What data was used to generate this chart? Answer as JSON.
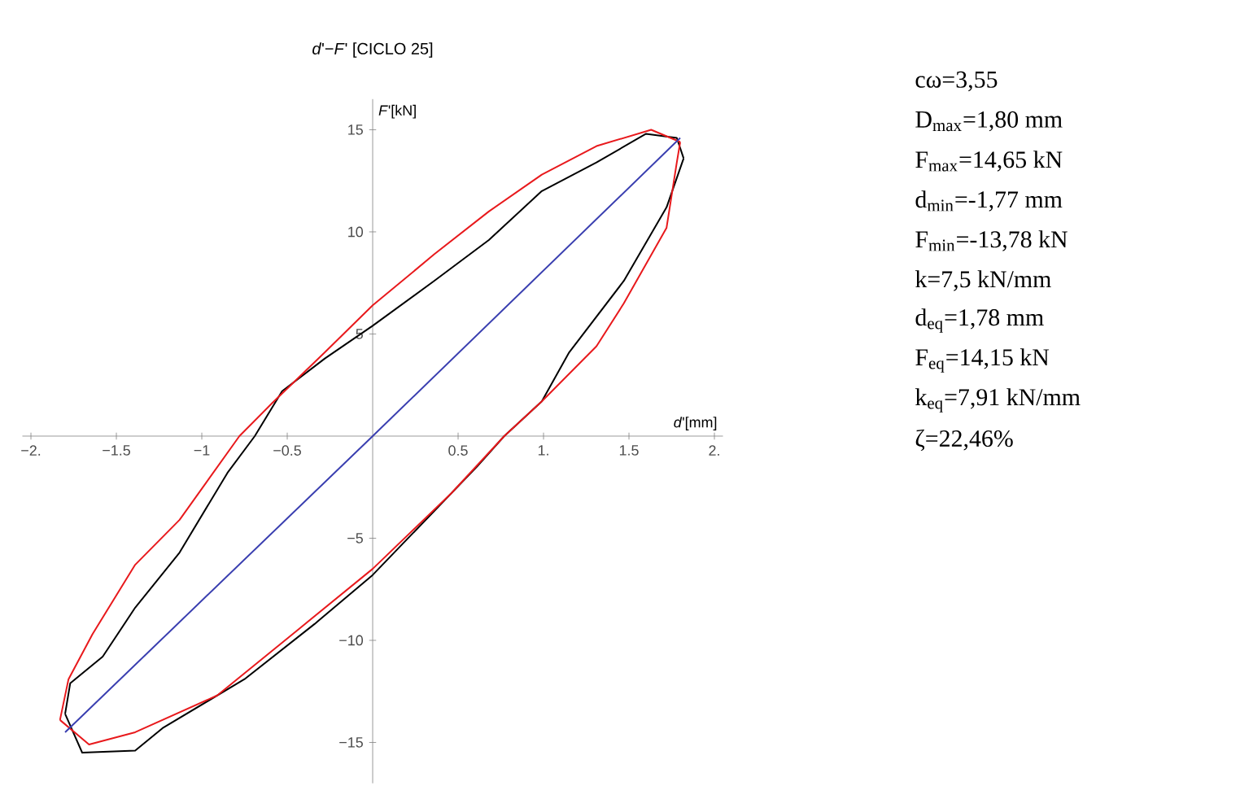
{
  "chart_data": {
    "type": "line",
    "title": "*d*'−*F*'  [CICLO 25]",
    "xlabel": "*d*'[mm]",
    "ylabel": "*F*'[kN]",
    "xlim": [
      -2.05,
      2.05
    ],
    "ylim": [
      -17,
      16.5
    ],
    "xticks": [
      {
        "value": -2,
        "label": "−2."
      },
      {
        "value": -1.5,
        "label": "−1.5"
      },
      {
        "value": -1,
        "label": "−1"
      },
      {
        "value": -0.5,
        "label": "−0.5"
      },
      {
        "value": 0.5,
        "label": "0.5"
      },
      {
        "value": 1,
        "label": "1."
      },
      {
        "value": 1.5,
        "label": "1.5"
      },
      {
        "value": 2,
        "label": "2."
      }
    ],
    "yticks": [
      {
        "value": -15,
        "label": "−15"
      },
      {
        "value": -10,
        "label": "−10"
      },
      {
        "value": -5,
        "label": "−5"
      },
      5,
      10,
      15
    ],
    "series": [
      {
        "color": "#000000",
        "x": [
          1.82,
          1.78,
          1.6,
          1.31,
          0.99,
          0.68,
          0.36,
          0,
          -0.28,
          -0.53,
          -0.69,
          -0.85,
          -1.13,
          -1.39,
          -1.58,
          -1.77,
          -1.8
        ],
        "values": [
          13.6,
          14.6,
          14.8,
          13.4,
          12.0,
          9.6,
          7.6,
          5.4,
          3.8,
          2.2,
          0,
          -1.8,
          -5.7,
          -8.4,
          -10.8,
          -12.1,
          -13.6
        ]
      },
      {
        "color": "#000000",
        "x": [
          -1.8,
          -1.7,
          -1.39,
          -1.23,
          -0.75,
          -0.34,
          0,
          0.61,
          0.77,
          0.99,
          1.15,
          1.47,
          1.72,
          1.82
        ],
        "values": [
          -13.6,
          -15.5,
          -15.4,
          -14.3,
          -11.9,
          -9.2,
          -6.8,
          -1.5,
          0,
          1.7,
          4.1,
          7.6,
          11.2,
          13.6
        ]
      },
      {
        "color": "#e8191c",
        "x": [
          1.8,
          1.63,
          1.31,
          0.99,
          0.68,
          0.36,
          0,
          -0.28,
          -0.59,
          -0.78,
          -1.13,
          -1.39,
          -1.64,
          -1.78,
          -1.83
        ],
        "values": [
          14.4,
          15.0,
          14.2,
          12.8,
          11.0,
          8.9,
          6.4,
          4.1,
          1.6,
          0,
          -4.1,
          -6.3,
          -9.7,
          -11.9,
          -13.9
        ]
      },
      {
        "color": "#e8191c",
        "x": [
          -1.83,
          -1.66,
          -1.39,
          -0.91,
          -0.44,
          0,
          0.46,
          0.77,
          0.99,
          1.31,
          1.47,
          1.72,
          1.78,
          1.8
        ],
        "values": [
          -13.9,
          -15.1,
          -14.5,
          -12.7,
          -9.5,
          -6.5,
          -2.8,
          0,
          1.7,
          4.4,
          6.5,
          10.2,
          13.4,
          14.4
        ]
      },
      {
        "color": "#3a3fb0",
        "x": [
          -1.8,
          0,
          1.8
        ],
        "values": [
          -14.5,
          0,
          14.6
        ]
      }
    ],
    "annotations": [
      "cω=3,55",
      "D$_{max}$=1,80 mm",
      "F$_{max}$=14,65 kN",
      "d$_{min}$=-1,77 mm",
      "F$_{min}$=-13,78 kN",
      "k=7,5 kN/mm",
      "d$_{eq}$=1,78 mm",
      "F$_{eq}$=14,15 kN",
      "k$_{eq}$=7,91 kN/mm",
      "ζ=22,46%"
    ]
  }
}
